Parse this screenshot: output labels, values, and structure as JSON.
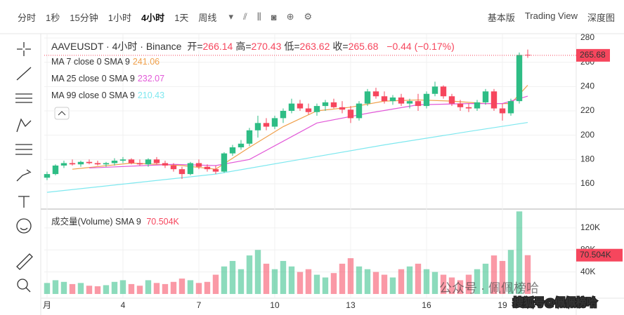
{
  "toolbar": {
    "intervals": [
      "分时",
      "1秒",
      "15分钟",
      "1小时",
      "4小时",
      "1天",
      "周线"
    ],
    "views": [
      "基本版",
      "Trading View",
      "深度图"
    ]
  },
  "chart_data": {
    "type": "candlestick",
    "title": "AAVEUSDT · 4小时 · Binance",
    "ohlc_header": [
      {
        "label": "开=",
        "value": 266.14
      },
      {
        "label": "高=",
        "value": 270.43
      },
      {
        "label": "低=",
        "value": 263.62
      },
      {
        "label": "收=",
        "value": 265.68
      }
    ],
    "change": "−0.44 (−0.17%)",
    "colors": {
      "up": "#2ebd85",
      "down": "#f6465d"
    },
    "candles": {
      "open": [
        165,
        168,
        175,
        177,
        176,
        178,
        177,
        176,
        177,
        179,
        180,
        177,
        176,
        180,
        177,
        175,
        172,
        168,
        177,
        174,
        172,
        170,
        185,
        190,
        193,
        204,
        210,
        207,
        214,
        220,
        226,
        222,
        219,
        224,
        227,
        223,
        221,
        214,
        226,
        236,
        232,
        228,
        231,
        226,
        228,
        224,
        234,
        240,
        232,
        226,
        223,
        222,
        227,
        236,
        222,
        218,
        228,
        266.14
      ],
      "high": [
        170,
        176,
        179,
        180,
        179,
        180,
        179,
        178,
        181,
        182,
        181,
        180,
        181,
        182,
        179,
        177,
        174,
        178,
        180,
        176,
        175,
        186,
        192,
        196,
        206,
        216,
        214,
        216,
        222,
        230,
        229,
        226,
        226,
        229,
        230,
        228,
        224,
        228,
        238,
        239,
        236,
        233,
        234,
        230,
        234,
        236,
        244,
        241,
        234,
        229,
        226,
        229,
        238,
        238,
        226,
        230,
        268,
        270.43
      ],
      "low": [
        163,
        167,
        173,
        175,
        174,
        176,
        175,
        174,
        175,
        177,
        176,
        175,
        174,
        176,
        173,
        170,
        164,
        167,
        172,
        170,
        168,
        169,
        183,
        188,
        191,
        198,
        204,
        205,
        210,
        218,
        220,
        217,
        216,
        220,
        222,
        218,
        210,
        212,
        224,
        230,
        226,
        225,
        224,
        222,
        220,
        222,
        232,
        230,
        224,
        220,
        219,
        220,
        225,
        220,
        212,
        216,
        226,
        263.62
      ],
      "close": [
        168,
        175,
        177,
        176,
        178,
        177,
        176,
        177,
        179,
        180,
        177,
        176,
        180,
        177,
        175,
        172,
        168,
        177,
        174,
        172,
        170,
        185,
        190,
        193,
        204,
        210,
        207,
        214,
        220,
        226,
        222,
        219,
        224,
        227,
        223,
        221,
        214,
        226,
        236,
        232,
        228,
        231,
        226,
        228,
        224,
        234,
        240,
        232,
        226,
        223,
        222,
        227,
        236,
        222,
        218,
        228,
        266,
        265.68
      ]
    },
    "ylim": [
      139.2,
      283.5
    ],
    "yticks": [
      160,
      180,
      200,
      220,
      240,
      260,
      280
    ],
    "xlim": [
      -0.33,
      62.75
    ],
    "xticks": [
      {
        "value": 0,
        "label": "月"
      },
      {
        "value": 9,
        "label": "4"
      },
      {
        "value": 18,
        "label": "7"
      },
      {
        "value": 27,
        "label": "10"
      },
      {
        "value": 36,
        "label": "13"
      },
      {
        "value": 45,
        "label": "16"
      },
      {
        "value": 54,
        "label": "19"
      }
    ],
    "moving_averages": [
      {
        "name": "MA 7 close 0 SMA 9",
        "color": "#f0a04b",
        "x": [
          3,
          10,
          16,
          20,
          24,
          28,
          32,
          36,
          40,
          44,
          48,
          52,
          55,
          57
        ],
        "values": [
          172,
          177,
          175,
          172,
          190,
          207,
          220,
          223,
          228,
          229,
          228,
          226,
          226,
          241.06
        ]
      },
      {
        "name": "MA 25 close 0 SMA 9",
        "color": "#e259d8",
        "x": [
          5,
          15,
          20,
          24,
          28,
          32,
          38,
          44,
          50,
          54,
          57
        ],
        "values": [
          173,
          176,
          175,
          180,
          195,
          210,
          218,
          225,
          226,
          226,
          232.07
        ]
      },
      {
        "name": "MA 99 close 0 SMA 9",
        "color": "#7ee8ef",
        "x": [
          0,
          20,
          30,
          40,
          50,
          57
        ],
        "values": [
          153,
          168,
          180,
          192,
          203,
          210.43
        ]
      }
    ],
    "volume": {
      "title": "成交量(Volume) SMA 9",
      "last_label": "70.504K",
      "values": [
        20000,
        25000,
        22000,
        18000,
        20000,
        15000,
        14000,
        16000,
        22000,
        25000,
        18000,
        15000,
        25000,
        20000,
        18000,
        22000,
        28000,
        25000,
        20000,
        22000,
        35000,
        50000,
        60000,
        45000,
        70000,
        80000,
        55000,
        45000,
        60000,
        50000,
        40000,
        45000,
        35000,
        30000,
        38000,
        55000,
        65000,
        50000,
        45000,
        40000,
        35000,
        30000,
        45000,
        50000,
        55000,
        45000,
        40000,
        35000,
        30000,
        25000,
        35000,
        45000,
        55000,
        70000,
        60000,
        80000,
        150000,
        70504
      ],
      "ylim": [
        -7600,
        151700
      ],
      "yticks": [
        {
          "value": 40000,
          "label": "40K"
        },
        {
          "value": 80000,
          "label": "80K"
        },
        {
          "value": 120000,
          "label": "120K"
        }
      ]
    },
    "watermarks": [
      "公众号 · 佩佩榜哈",
      "搜狐号@佩佩榜哈"
    ]
  }
}
